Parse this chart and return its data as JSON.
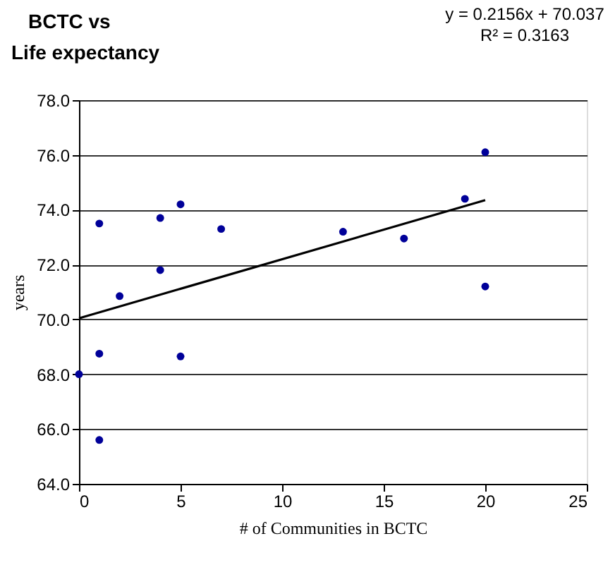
{
  "chart_data": {
    "type": "scatter",
    "title": "BCTC vs\nLife expectancy",
    "xlabel": "# of Communities in BCTC",
    "ylabel": "years",
    "annotations": [
      "y = 0.2156x + 70.037",
      "R² = 0.3163"
    ],
    "xlim": [
      0,
      25
    ],
    "xticks": [
      0,
      5,
      10,
      15,
      20,
      25
    ],
    "ylim": [
      64,
      78
    ],
    "yticks": [
      {
        "value": 64,
        "label": "64.0"
      },
      {
        "value": 66,
        "label": "66.0"
      },
      {
        "value": 68,
        "label": "68.0"
      },
      {
        "value": 70,
        "label": "70.0"
      },
      {
        "value": 72,
        "label": "72.0"
      },
      {
        "value": 74,
        "label": "74.0"
      },
      {
        "value": 76,
        "label": "76.0"
      },
      {
        "value": 78,
        "label": "78.0"
      }
    ],
    "grid": "y",
    "marker": "circle",
    "series": [
      {
        "color": "#000099",
        "x": [
          0,
          1,
          1,
          1,
          2,
          4,
          4,
          5,
          5,
          7,
          13,
          16,
          19,
          20,
          20
        ],
        "values": [
          68.0,
          73.5,
          68.75,
          65.6,
          70.85,
          73.7,
          71.8,
          74.2,
          68.65,
          73.3,
          73.2,
          72.95,
          74.4,
          76.1,
          71.2
        ]
      },
      {
        "type": "line",
        "marker": "none",
        "color": "#000000",
        "x": [
          0,
          20
        ],
        "values": [
          70.04,
          74.35
        ]
      }
    ]
  }
}
